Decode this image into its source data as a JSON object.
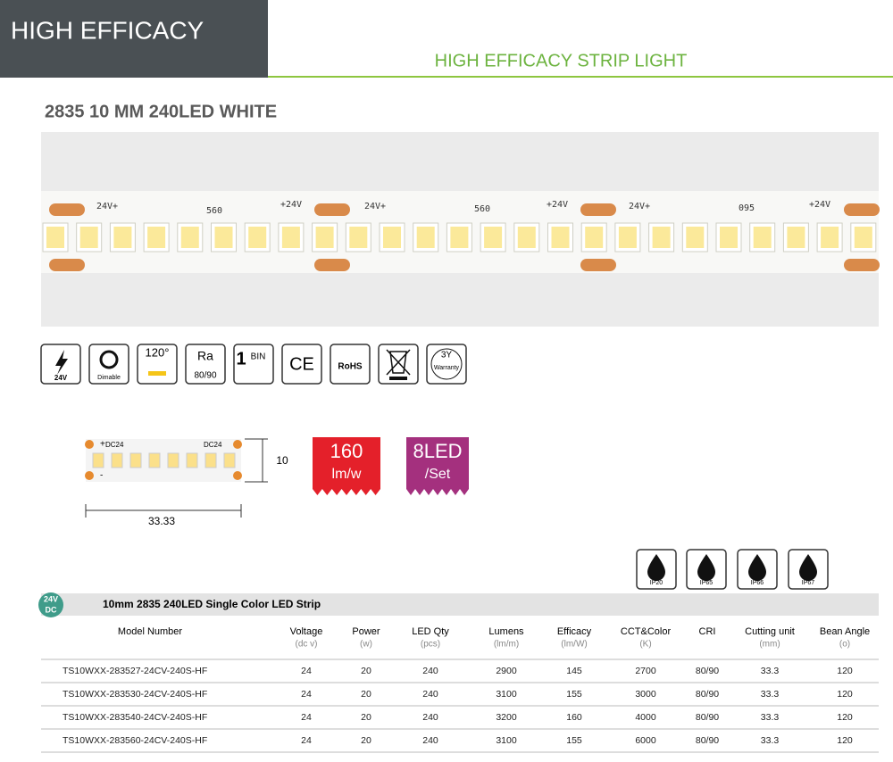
{
  "header": {
    "tab": "HIGH EFFICACY",
    "subtitle": "HIGH EFFICACY STRIP LIGHT"
  },
  "product": {
    "title": "2835  10 MM 240LED WHITE",
    "strip_marks": [
      "24V+",
      "+24V",
      "24V+",
      "560",
      "560",
      "+24V",
      "24V+",
      "095",
      "+24V"
    ]
  },
  "icons": {
    "voltage": "24V",
    "dimmable": "Dimable",
    "angle": "120°",
    "ra": "Ra",
    "cri": "80/90",
    "bin_number": "1",
    "bin": "BIN",
    "ce": "CE",
    "rohs": "RoHS",
    "warranty_years": "3Y",
    "warranty": "Warranty"
  },
  "dimensions": {
    "left_label": "DC24",
    "right_label": "DC24",
    "plus": "+",
    "minus": "-",
    "width": "10",
    "length": "33.33"
  },
  "badges": {
    "efficacy": "160",
    "efficacy_unit": "lm/w",
    "leds": "8LED",
    "leds_unit": "/Set"
  },
  "ip_ratings": [
    "IP20",
    "IP65",
    "IP66",
    "IP67"
  ],
  "table": {
    "badge": [
      "24V",
      "DC"
    ],
    "title": "10mm 2835 240LED Single Color LED Strip",
    "headers": [
      {
        "name": "Model Number"
      },
      {
        "name": "Voltage",
        "unit": "(dc v)"
      },
      {
        "name": "Power",
        "unit": "(w)"
      },
      {
        "name": "LED Qty",
        "unit": "(pcs)"
      },
      {
        "name": "Lumens",
        "unit": "(lm/m)"
      },
      {
        "name": "Efficacy",
        "unit": "(lm/W)"
      },
      {
        "name": "CCT&Color",
        "unit": "(K)"
      },
      {
        "name": "CRI"
      },
      {
        "name": "Cutting unit",
        "unit": "(mm)"
      },
      {
        "name": "Bean Angle",
        "unit": "(o)"
      }
    ],
    "rows": [
      [
        "TS10WXX-283527-24CV-240S-HF",
        24,
        20,
        240,
        2900,
        145,
        2700,
        "80/90",
        33.3,
        120
      ],
      [
        "TS10WXX-283530-24CV-240S-HF",
        24,
        20,
        240,
        3100,
        155,
        3000,
        "80/90",
        33.3,
        120
      ],
      [
        "TS10WXX-283540-24CV-240S-HF",
        24,
        20,
        240,
        3200,
        160,
        4000,
        "80/90",
        33.3,
        120
      ],
      [
        "TS10WXX-283560-24CV-240S-HF",
        24,
        20,
        240,
        3100,
        155,
        6000,
        "80/90",
        33.3,
        120
      ]
    ]
  }
}
